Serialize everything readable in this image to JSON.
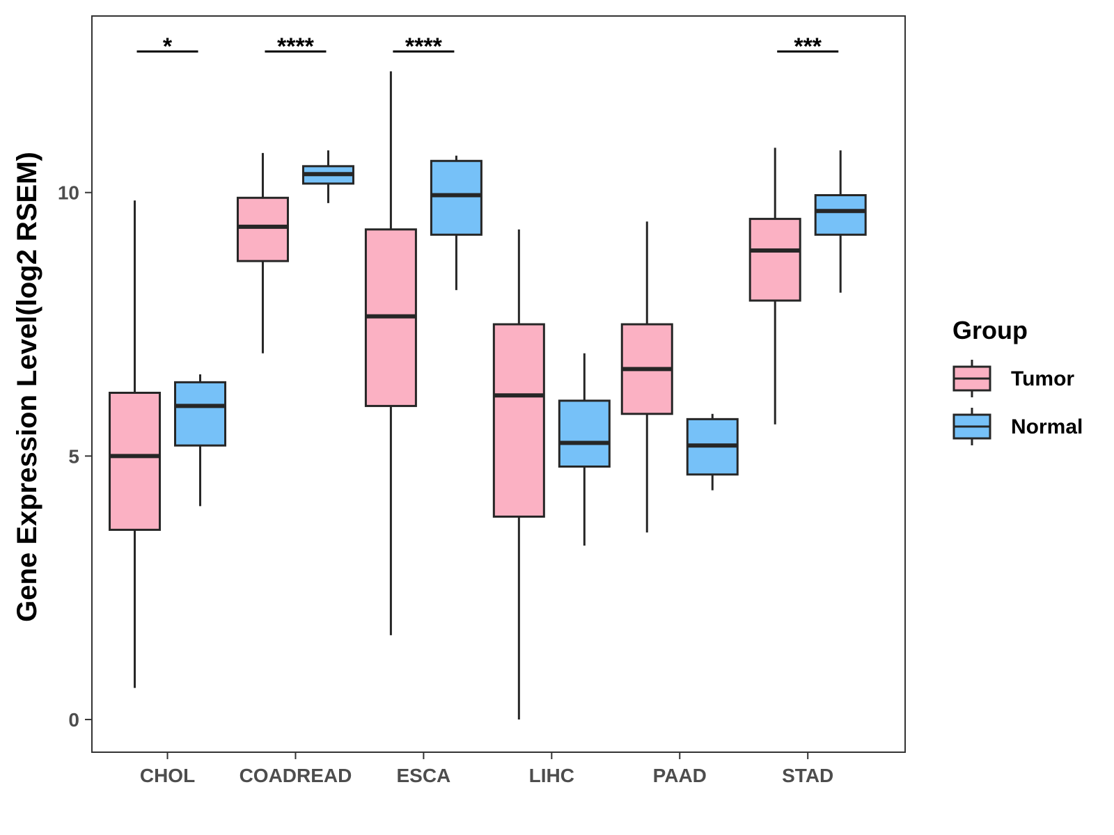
{
  "chart_data": {
    "type": "boxplot",
    "title": "",
    "xlabel": "",
    "ylabel": "Gene Expression Level(log2 RSEM)",
    "ylim": [
      -0.62,
      13.35
    ],
    "yticks": [
      0,
      5,
      10
    ],
    "grid": false,
    "categories": [
      "CHOL",
      "COADREAD",
      "ESCA",
      "LIHC",
      "PAAD",
      "STAD"
    ],
    "legend": {
      "title": "Group",
      "position": "right",
      "entries": [
        {
          "name": "Tumor",
          "color": "#FBB1C3"
        },
        {
          "name": "Normal",
          "color": "#76C1F8"
        }
      ]
    },
    "series": [
      {
        "name": "Tumor",
        "color": "#FBB1C3",
        "boxes": [
          {
            "min": 0.6,
            "q1": 3.6,
            "median": 5.0,
            "q3": 6.2,
            "max": 9.85
          },
          {
            "min": 6.95,
            "q1": 8.7,
            "median": 9.35,
            "q3": 9.9,
            "max": 10.75
          },
          {
            "min": 1.6,
            "q1": 5.95,
            "median": 7.65,
            "q3": 9.3,
            "max": 12.3
          },
          {
            "min": 0.0,
            "q1": 3.85,
            "median": 6.15,
            "q3": 7.5,
            "max": 9.3
          },
          {
            "min": 3.55,
            "q1": 5.8,
            "median": 6.65,
            "q3": 7.5,
            "max": 9.45
          },
          {
            "min": 5.6,
            "q1": 7.95,
            "median": 8.9,
            "q3": 9.5,
            "max": 10.85
          }
        ]
      },
      {
        "name": "Normal",
        "color": "#76C1F8",
        "boxes": [
          {
            "min": 4.05,
            "q1": 5.2,
            "median": 5.95,
            "q3": 6.4,
            "max": 6.55
          },
          {
            "min": 9.8,
            "q1": 10.17,
            "median": 10.35,
            "q3": 10.5,
            "max": 10.8
          },
          {
            "min": 8.15,
            "q1": 9.2,
            "median": 9.95,
            "q3": 10.6,
            "max": 10.7
          },
          {
            "min": 3.3,
            "q1": 4.8,
            "median": 5.25,
            "q3": 6.05,
            "max": 6.95
          },
          {
            "min": 4.35,
            "q1": 4.65,
            "median": 5.2,
            "q3": 5.7,
            "max": 5.8
          },
          {
            "min": 8.1,
            "q1": 9.2,
            "median": 9.65,
            "q3": 9.95,
            "max": 10.8
          }
        ]
      }
    ],
    "annotations": [
      {
        "category": "CHOL",
        "label": "*"
      },
      {
        "category": "COADREAD",
        "label": "****"
      },
      {
        "category": "ESCA",
        "label": "****"
      },
      {
        "category": "STAD",
        "label": "***"
      }
    ]
  }
}
